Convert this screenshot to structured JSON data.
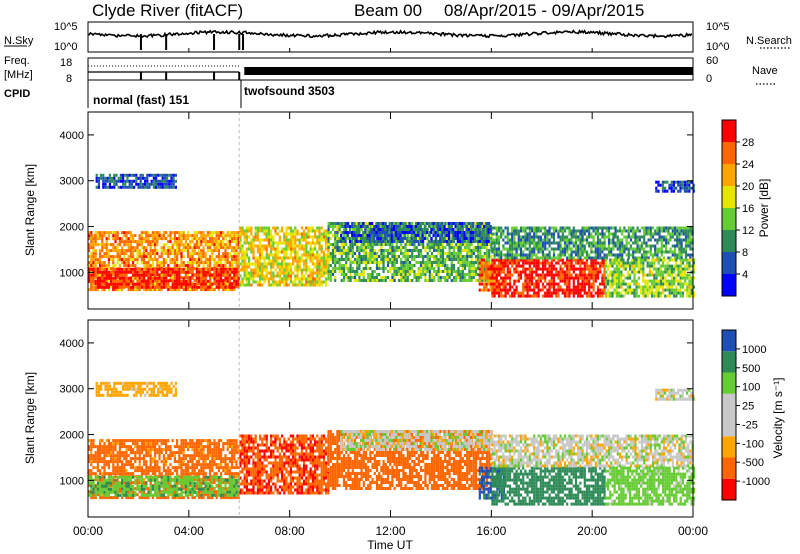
{
  "header": {
    "title": "Clyde River (fitACF)",
    "beam": "Beam 00",
    "date_range": "08/Apr/2015 - 09/Apr/2015"
  },
  "nsky_panel": {
    "left_label": "N.Sky",
    "left_ticks": [
      "10^5",
      "10^0"
    ],
    "right_label": "N.Search",
    "right_ticks": [
      "10^5",
      "10^0"
    ]
  },
  "freq_panel": {
    "left_label_1": "Freq.",
    "left_label_2": "[MHz]",
    "left_ticks": [
      "18",
      "8"
    ],
    "right_label": "Nave",
    "right_ticks": [
      "60",
      "0"
    ]
  },
  "cpid": {
    "label": "CPID",
    "modes": [
      {
        "name": "normal (fast) 151",
        "start_hour": 0,
        "end_hour": 6.0
      },
      {
        "name": "twofsound 3503",
        "start_hour": 6.0,
        "end_hour": 24.0
      }
    ]
  },
  "power_panel": {
    "ylabel": "Slant Range [km]",
    "yticks": [
      "1000",
      "2000",
      "3000",
      "4000"
    ],
    "colorbar_label": "Power [dB]",
    "colorbar_ticks": [
      "28",
      "24",
      "20",
      "16",
      "12",
      "8",
      "4"
    ]
  },
  "velocity_panel": {
    "ylabel": "Slant Range [km]",
    "yticks": [
      "1000",
      "2000",
      "3000",
      "4000"
    ],
    "colorbar_label": "Velocity [m s⁻¹]",
    "colorbar_ticks": [
      "1000",
      "500",
      "100",
      "25",
      "-25",
      "-100",
      "-500",
      "-1000"
    ]
  },
  "xaxis": {
    "label": "Time UT",
    "ticks": [
      "00:00",
      "04:00",
      "08:00",
      "12:00",
      "16:00",
      "20:00",
      "00:00"
    ]
  },
  "colors": {
    "power_scale": [
      "#0000ff",
      "#1f4fb4",
      "#2e8b57",
      "#66cc33",
      "#e6e600",
      "#ffa500",
      "#ff6600",
      "#ff0000"
    ],
    "velocity_scale": [
      "#ff0000",
      "#ff6600",
      "#ffa500",
      "#c8c8c8",
      "#c8c8c8",
      "#66cc33",
      "#2e8b57",
      "#1f4fb4"
    ]
  },
  "chart_data": {
    "type": "heatmap",
    "x_range_hours": [
      0,
      24
    ],
    "y_range_km": [
      200,
      4500
    ],
    "power_range_db": [
      0,
      30
    ],
    "velocity_range_ms": [
      -1000,
      1000
    ],
    "echo_regions": [
      {
        "t_start": 0.0,
        "t_end": 6.0,
        "r_min": 600,
        "r_max": 1900,
        "power_db": 22,
        "velocity_ms": -150
      },
      {
        "t_start": 0.0,
        "t_end": 6.0,
        "r_min": 700,
        "r_max": 1100,
        "power_db": 28,
        "velocity_ms": 80
      },
      {
        "t_start": 0.3,
        "t_end": 3.5,
        "r_min": 2850,
        "r_max": 3150,
        "power_db": 6,
        "velocity_ms": -60
      },
      {
        "t_start": 6.0,
        "t_end": 9.5,
        "r_min": 750,
        "r_max": 2000,
        "power_db": 18,
        "velocity_ms": -450
      },
      {
        "t_start": 9.5,
        "t_end": 16.0,
        "r_min": 800,
        "r_max": 2100,
        "power_db": 12,
        "velocity_ms": -300
      },
      {
        "t_start": 10.0,
        "t_end": 16.0,
        "r_min": 1700,
        "r_max": 2100,
        "power_db": 6,
        "velocity_ms": 0
      },
      {
        "t_start": 15.5,
        "t_end": 16.5,
        "r_min": 600,
        "r_max": 1300,
        "power_db": 24,
        "velocity_ms": 700
      },
      {
        "t_start": 16.0,
        "t_end": 20.5,
        "r_min": 500,
        "r_max": 1300,
        "power_db": 28,
        "velocity_ms": 200
      },
      {
        "t_start": 16.0,
        "t_end": 24.0,
        "r_min": 1300,
        "r_max": 2000,
        "power_db": 10,
        "velocity_ms": 0
      },
      {
        "t_start": 20.5,
        "t_end": 24.0,
        "r_min": 500,
        "r_max": 1300,
        "power_db": 14,
        "velocity_ms": 60
      },
      {
        "t_start": 22.5,
        "t_end": 24.0,
        "r_min": 2800,
        "r_max": 3000,
        "power_db": 5,
        "velocity_ms": 0
      }
    ]
  }
}
